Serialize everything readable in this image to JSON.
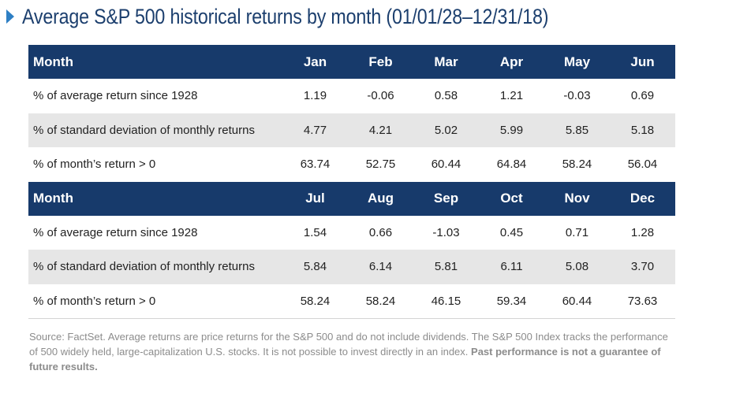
{
  "title": "Average S&P 500 historical returns by month (01/01/28–12/31/18)",
  "tables": [
    {
      "header_label": "Month",
      "months": [
        "Jan",
        "Feb",
        "Mar",
        "Apr",
        "May",
        "Jun"
      ],
      "rows": [
        {
          "label": "% of average return since 1928",
          "values": [
            "1.19",
            "-0.06",
            "0.58",
            "1.21",
            "-0.03",
            "0.69"
          ]
        },
        {
          "label": "% of standard deviation of monthly returns",
          "values": [
            "4.77",
            "4.21",
            "5.02",
            "5.99",
            "5.85",
            "5.18"
          ]
        },
        {
          "label": "% of month’s return > 0",
          "values": [
            "63.74",
            "52.75",
            "60.44",
            "64.84",
            "58.24",
            "56.04"
          ]
        }
      ]
    },
    {
      "header_label": "Month",
      "months": [
        "Jul",
        "Aug",
        "Sep",
        "Oct",
        "Nov",
        "Dec"
      ],
      "rows": [
        {
          "label": "% of average return since 1928",
          "values": [
            "1.54",
            "0.66",
            "-1.03",
            "0.45",
            "0.71",
            "1.28"
          ]
        },
        {
          "label": "% of standard deviation of monthly returns",
          "values": [
            "5.84",
            "6.14",
            "5.81",
            "6.11",
            "5.08",
            "3.70"
          ]
        },
        {
          "label": "% of month’s return > 0",
          "values": [
            "58.24",
            "58.24",
            "46.15",
            "59.34",
            "60.44",
            "73.63"
          ]
        }
      ]
    }
  ],
  "footnote": {
    "text": "Source: FactSet. Average returns are price returns for the S&P 500 and do not include dividends. The S&P 500 Index tracks the performance of 500 widely held, large-capitalization U.S. stocks. It is not possible to invest directly in an index.",
    "bold": "Past performance is not a guarantee of future results."
  },
  "colors": {
    "header_bg": "#173a6b",
    "title": "#1c3f6e",
    "marker": "#2e7fc4",
    "shade": "#e6e6e6"
  }
}
